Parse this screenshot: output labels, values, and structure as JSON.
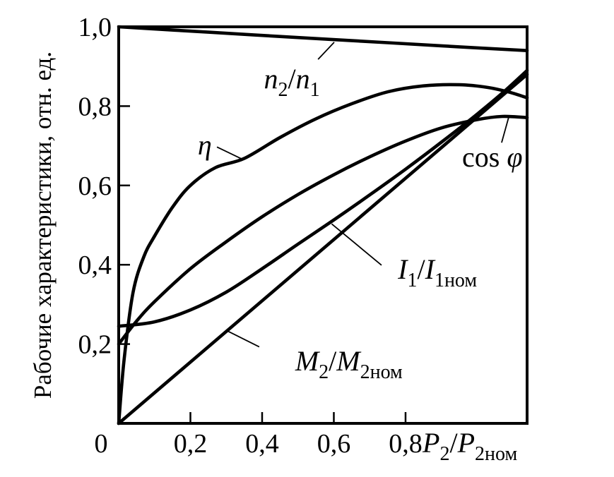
{
  "figure": {
    "background": "#ffffff",
    "ink": "#000000",
    "y_axis_title": "Рабочие характеристики, отн. ед.",
    "x_axis_title_parts": [
      {
        "t": "P",
        "i": true
      },
      {
        "t": "2",
        "sub": true
      },
      {
        "t": "/"
      },
      {
        "t": "P",
        "i": true
      },
      {
        "t": "2ном",
        "sub": true
      }
    ],
    "origin_label": "0"
  },
  "chart_data": {
    "type": "line",
    "title": "",
    "xlabel": "P₂/P₂ном",
    "ylabel": "Рабочие характеристики, отн. ед.",
    "xlim": [
      0,
      1.139
    ],
    "ylim": [
      0,
      1.0
    ],
    "grid": false,
    "legend": "inline-curve-labels",
    "x_ticks": [
      {
        "value": 0.2,
        "label": "0,2"
      },
      {
        "value": 0.4,
        "label": "0,4"
      },
      {
        "value": 0.6,
        "label": "0,6"
      },
      {
        "value": 0.8,
        "label": "0,8"
      }
    ],
    "y_ticks": [
      {
        "value": 0.2,
        "label": "0,2"
      },
      {
        "value": 0.4,
        "label": "0,4"
      },
      {
        "value": 0.6,
        "label": "0,6"
      },
      {
        "value": 0.8,
        "label": "0,8"
      },
      {
        "value": 1.0,
        "label": "1,0"
      }
    ],
    "series": [
      {
        "name": "n2/n1",
        "points": [
          [
            0,
            1.0
          ],
          [
            0.25,
            0.9865
          ],
          [
            0.5,
            0.973
          ],
          [
            0.75,
            0.96
          ],
          [
            0.95,
            0.9495
          ],
          [
            1.139,
            0.94
          ]
        ]
      },
      {
        "name": "eta",
        "points": [
          [
            0,
            0
          ],
          [
            0.015,
            0.16
          ],
          [
            0.04,
            0.33
          ],
          [
            0.07,
            0.42
          ],
          [
            0.1,
            0.472
          ],
          [
            0.15,
            0.545
          ],
          [
            0.2,
            0.6
          ],
          [
            0.27,
            0.645
          ],
          [
            0.35,
            0.668
          ],
          [
            0.45,
            0.721
          ],
          [
            0.55,
            0.768
          ],
          [
            0.65,
            0.806
          ],
          [
            0.75,
            0.836
          ],
          [
            0.85,
            0.851
          ],
          [
            0.95,
            0.854
          ],
          [
            1.03,
            0.847
          ],
          [
            1.09,
            0.835
          ],
          [
            1.139,
            0.821
          ]
        ]
      },
      {
        "name": "cos phi",
        "points": [
          [
            0,
            0.2
          ],
          [
            0.05,
            0.258
          ],
          [
            0.1,
            0.307
          ],
          [
            0.2,
            0.39
          ],
          [
            0.3,
            0.458
          ],
          [
            0.4,
            0.521
          ],
          [
            0.5,
            0.577
          ],
          [
            0.6,
            0.627
          ],
          [
            0.7,
            0.672
          ],
          [
            0.8,
            0.712
          ],
          [
            0.9,
            0.745
          ],
          [
            1.0,
            0.766
          ],
          [
            1.07,
            0.774
          ],
          [
            1.139,
            0.771
          ]
        ]
      },
      {
        "name": "I1/I1nom",
        "points": [
          [
            0,
            0.245
          ],
          [
            0.1,
            0.256
          ],
          [
            0.2,
            0.286
          ],
          [
            0.3,
            0.331
          ],
          [
            0.4,
            0.39
          ],
          [
            0.5,
            0.452
          ],
          [
            0.6,
            0.513
          ],
          [
            0.7,
            0.576
          ],
          [
            0.8,
            0.641
          ],
          [
            0.9,
            0.709
          ],
          [
            1.0,
            0.78
          ],
          [
            1.07,
            0.833
          ],
          [
            1.139,
            0.89
          ]
        ]
      },
      {
        "name": "M2/M2nom",
        "points": [
          [
            0,
            0
          ],
          [
            1.139,
            0.88
          ]
        ]
      }
    ],
    "annotations": [
      {
        "id": "label-n2-n1",
        "x": 0.483,
        "y": 0.868,
        "parts": [
          {
            "t": "n",
            "i": true
          },
          {
            "t": "2",
            "sub": true
          },
          {
            "t": "/"
          },
          {
            "t": "n",
            "i": true
          },
          {
            "t": "1",
            "sub": true
          }
        ],
        "leader": {
          "x1": 0.556,
          "y1": 0.918,
          "x2": 0.601,
          "y2": 0.961
        }
      },
      {
        "id": "label-eta",
        "x": 0.24,
        "y": 0.701,
        "parts": [
          {
            "t": "η",
            "i": true
          }
        ],
        "leader": {
          "x1": 0.274,
          "y1": 0.697,
          "x2": 0.343,
          "y2": 0.667
        }
      },
      {
        "id": "label-cos-phi",
        "x": 1.042,
        "y": 0.671,
        "parts": [
          {
            "t": "cos ",
            "i": false
          },
          {
            "t": "φ",
            "i": true
          }
        ],
        "leader": {
          "x1": 1.068,
          "y1": 0.708,
          "x2": 1.088,
          "y2": 0.773
        }
      },
      {
        "id": "label-i1-i1nom",
        "x": 0.889,
        "y": 0.388,
        "parts": [
          {
            "t": "I",
            "i": true
          },
          {
            "t": "1",
            "sub": true
          },
          {
            "t": "/"
          },
          {
            "t": "I",
            "i": true
          },
          {
            "t": "1ном",
            "sub": true
          }
        ],
        "leader": {
          "x1": 0.594,
          "y1": 0.503,
          "x2": 0.733,
          "y2": 0.399
        }
      },
      {
        "id": "label-m2-m2nom",
        "x": 0.642,
        "y": 0.157,
        "parts": [
          {
            "t": "M",
            "i": true
          },
          {
            "t": "2",
            "sub": true
          },
          {
            "t": "/"
          },
          {
            "t": "M",
            "i": true
          },
          {
            "t": "2ном",
            "sub": true
          }
        ],
        "leader": {
          "x1": 0.299,
          "y1": 0.235,
          "x2": 0.392,
          "y2": 0.193
        }
      }
    ]
  }
}
